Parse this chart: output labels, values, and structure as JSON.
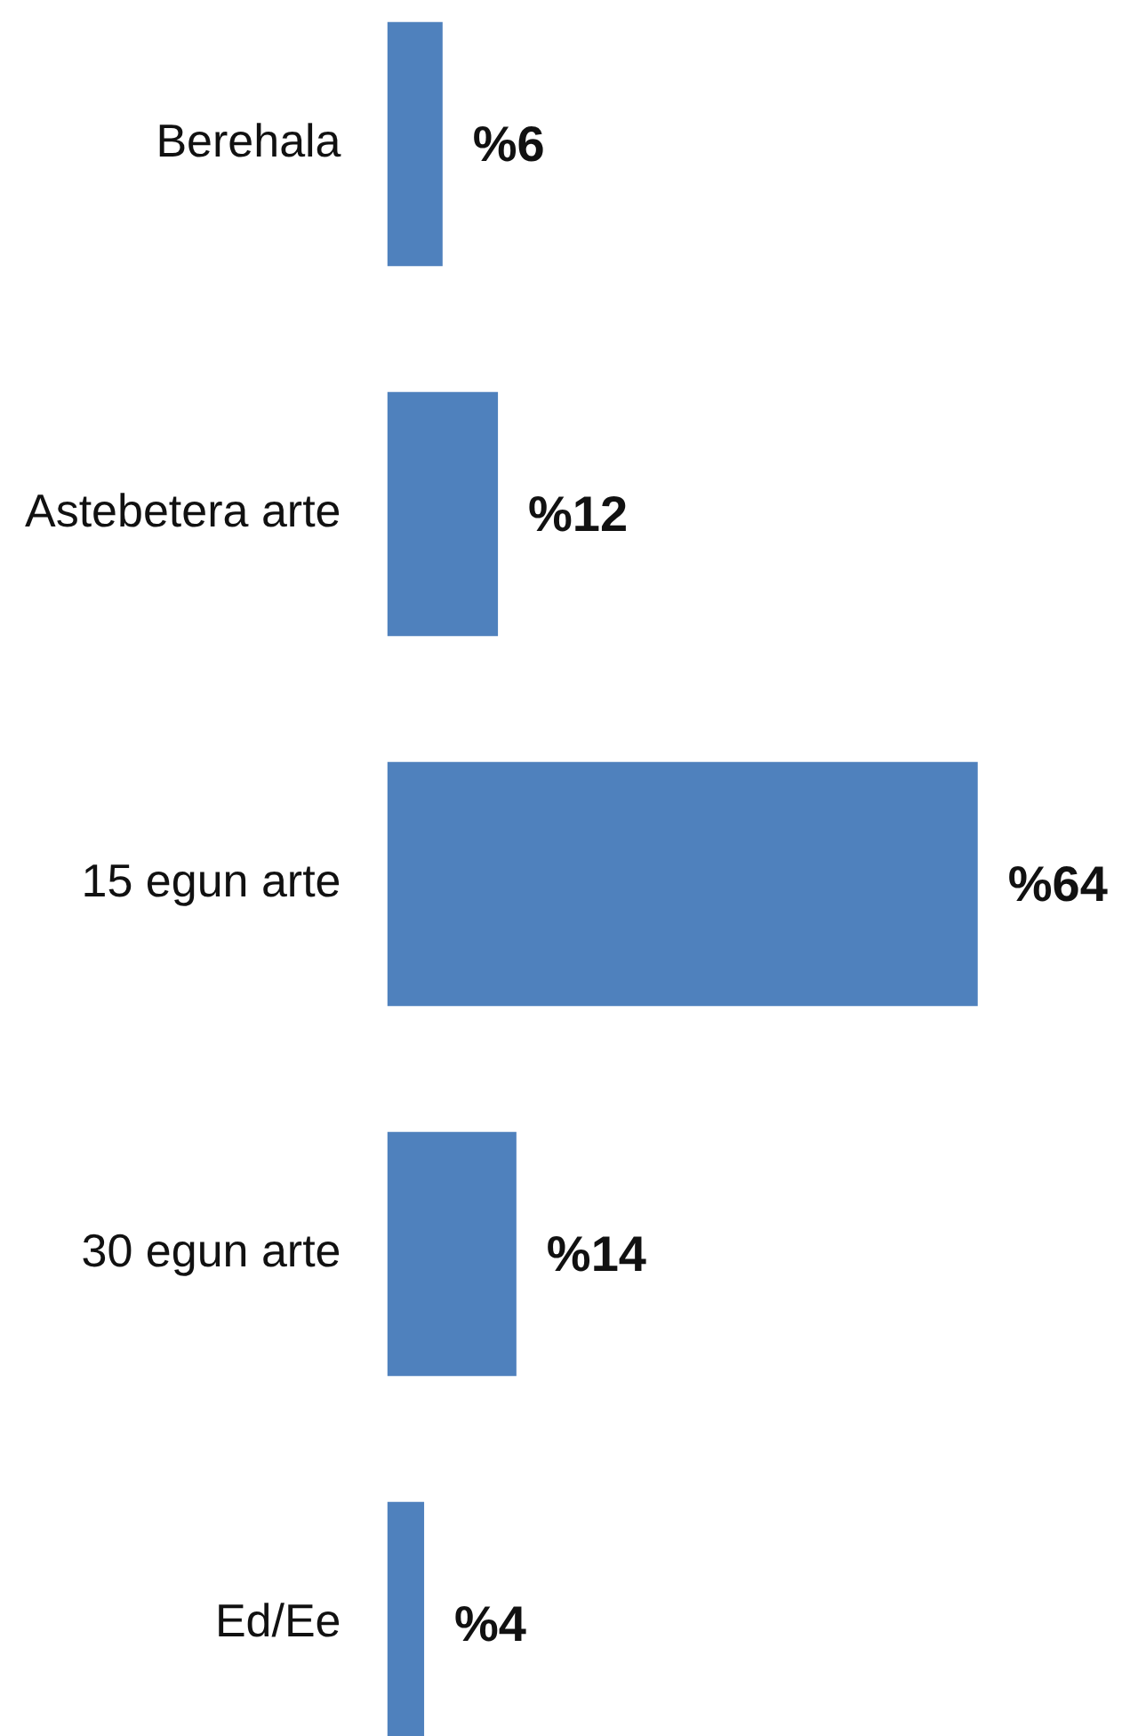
{
  "chart_data": {
    "type": "bar",
    "orientation": "horizontal",
    "categories": [
      "Berehala",
      "Astebetera arte",
      "15 egun arte",
      "30 egun arte",
      "Ed/Ee"
    ],
    "values": [
      6,
      12,
      64,
      14,
      4
    ],
    "color": "#4f81bd",
    "value_labels": [
      "%6",
      "%12",
      "%64",
      "%14",
      "%4"
    ],
    "tick_labels": "y"
  }
}
